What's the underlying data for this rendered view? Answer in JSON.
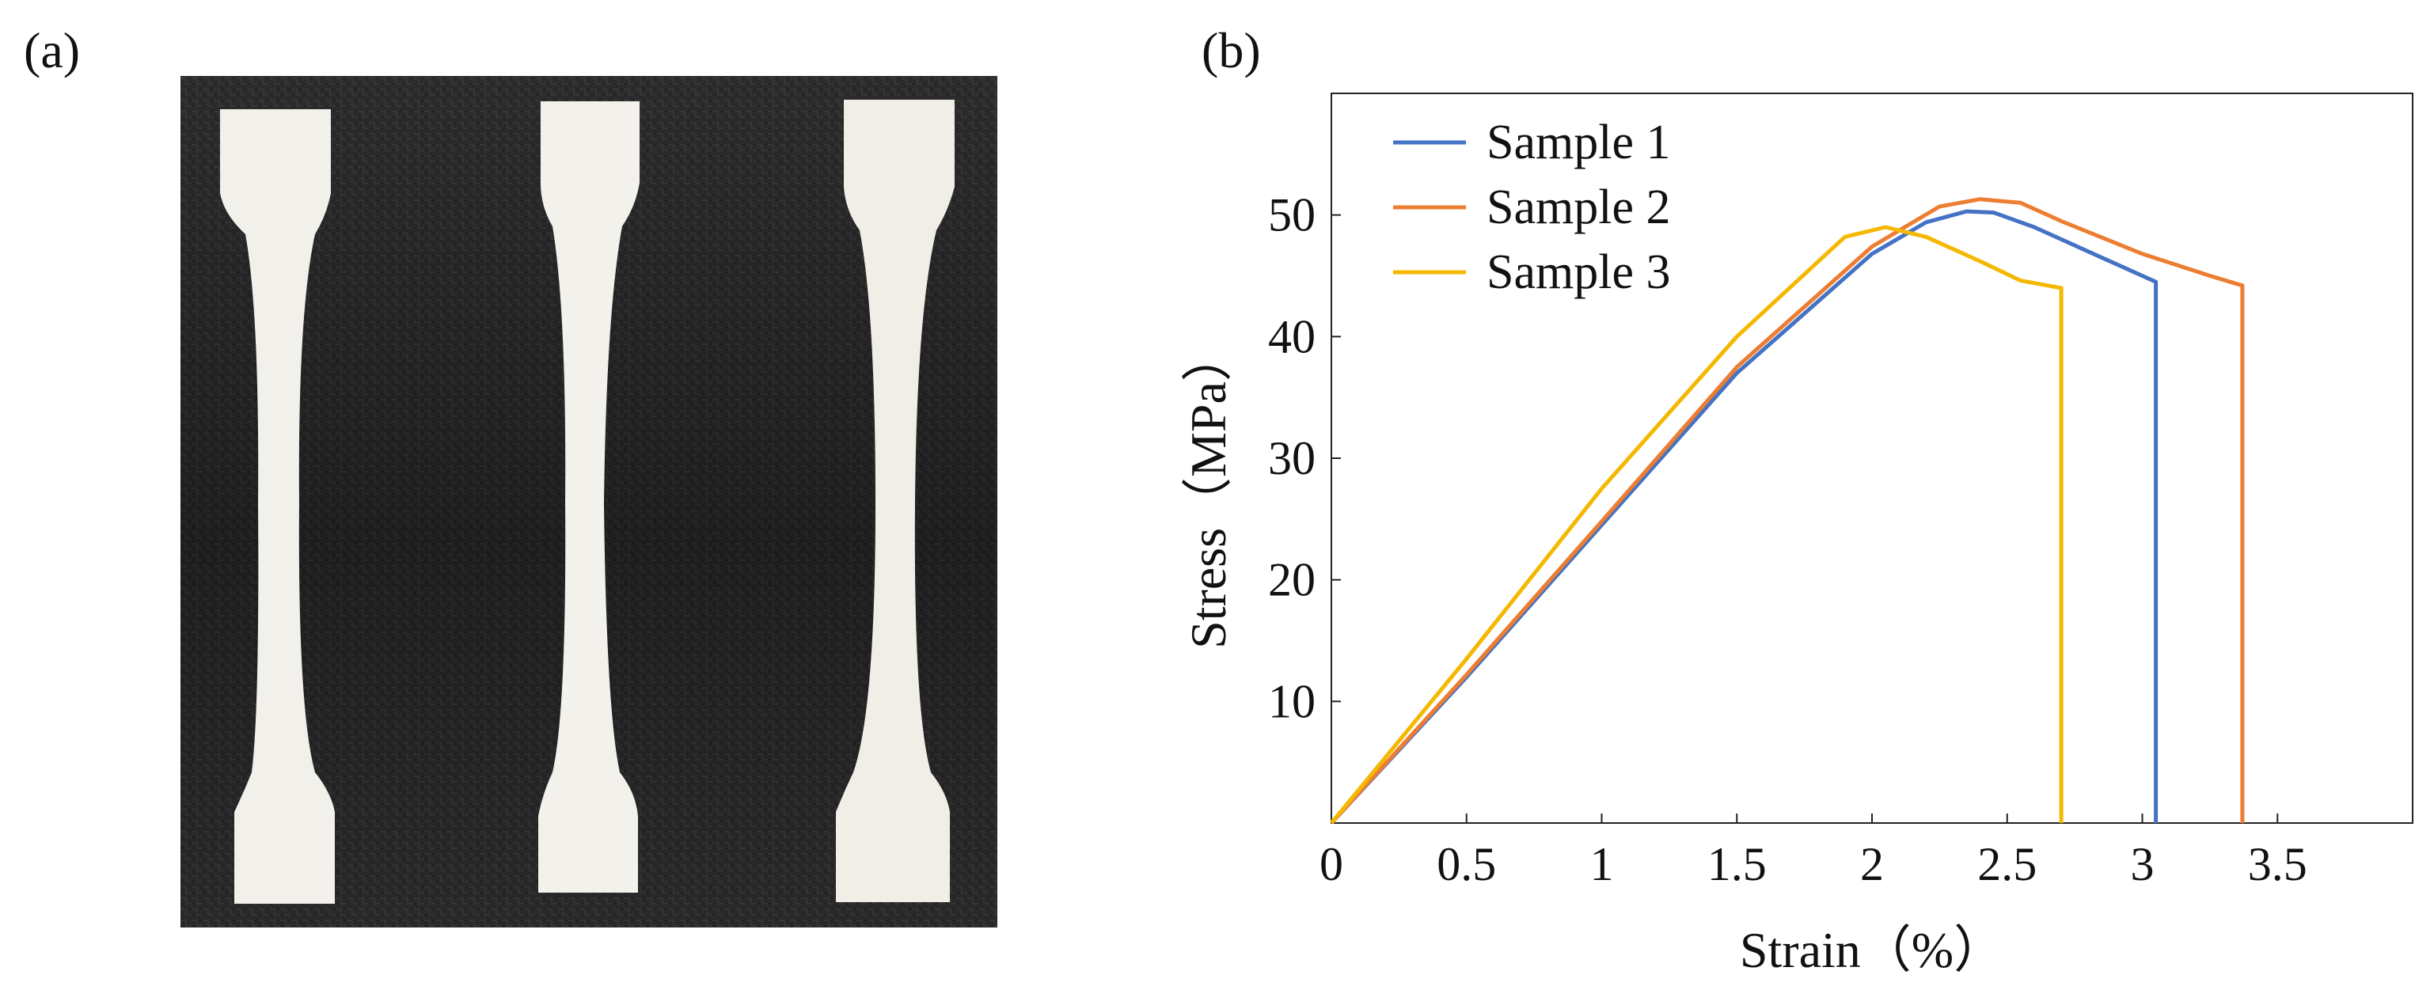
{
  "panels": {
    "a_label": "(a)",
    "b_label": "(b)"
  },
  "photo": {
    "description_icon": "tensile-dogbone-specimens-photo",
    "specimen_count": 3,
    "background_color": "#2b2b2b",
    "specimen_color": "#f1efe8"
  },
  "chart_data": {
    "type": "line",
    "title": "",
    "xlabel": "Strain（%）",
    "ylabel": "Stress（MPa）",
    "xlim": [
      0,
      4
    ],
    "ylim": [
      0,
      60
    ],
    "x_ticks": [
      0,
      0.5,
      1,
      1.5,
      2,
      2.5,
      3,
      3.5
    ],
    "x_tick_labels": [
      "0",
      "0.5",
      "1",
      "1.5",
      "2",
      "2.5",
      "3",
      "3.5"
    ],
    "y_ticks": [
      10,
      20,
      30,
      40,
      50
    ],
    "y_tick_labels": [
      "10",
      "20",
      "30",
      "40",
      "50"
    ],
    "grid": false,
    "legend_position": "top-left",
    "series": [
      {
        "name": "Sample 1",
        "color": "#4472c4",
        "points": [
          [
            0,
            0
          ],
          [
            0.5,
            12
          ],
          [
            1,
            24.5
          ],
          [
            1.5,
            37
          ],
          [
            2,
            46.8
          ],
          [
            2.2,
            49.4
          ],
          [
            2.35,
            50.3
          ],
          [
            2.45,
            50.2
          ],
          [
            2.6,
            49
          ],
          [
            2.8,
            47
          ],
          [
            3.05,
            44.5
          ],
          [
            3.05,
            0
          ]
        ]
      },
      {
        "name": "Sample 2",
        "color": "#ed7d31",
        "points": [
          [
            0,
            0
          ],
          [
            0.5,
            12.2
          ],
          [
            1,
            24.8
          ],
          [
            1.5,
            37.5
          ],
          [
            2,
            47.4
          ],
          [
            2.25,
            50.7
          ],
          [
            2.4,
            51.3
          ],
          [
            2.55,
            51.0
          ],
          [
            2.7,
            49.5
          ],
          [
            3,
            46.8
          ],
          [
            3.25,
            45
          ],
          [
            3.37,
            44.2
          ],
          [
            3.37,
            0
          ]
        ]
      },
      {
        "name": "Sample 3",
        "color": "#f5b800",
        "points": [
          [
            0,
            0
          ],
          [
            0.5,
            13.5
          ],
          [
            1,
            27.5
          ],
          [
            1.5,
            40
          ],
          [
            1.9,
            48.2
          ],
          [
            2.05,
            49
          ],
          [
            2.2,
            48.2
          ],
          [
            2.4,
            46.2
          ],
          [
            2.55,
            44.6
          ],
          [
            2.7,
            44
          ],
          [
            2.7,
            0
          ]
        ]
      }
    ]
  }
}
